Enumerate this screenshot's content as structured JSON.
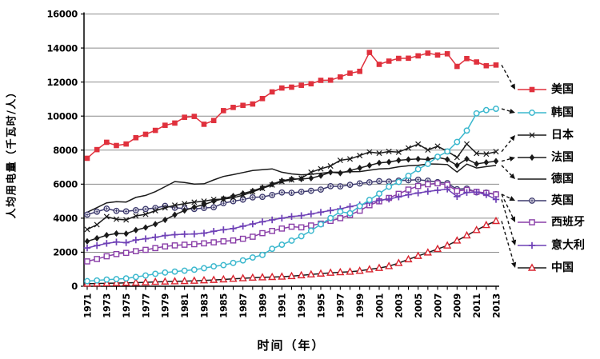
{
  "figure": {
    "background": "#ffffff"
  },
  "chart_data": {
    "type": "line",
    "title": "",
    "xlabel": "时间（年）",
    "ylabel": "人均用电量（千瓦时/人）",
    "x_start": 1971,
    "x_end": 2013,
    "ylim": [
      0,
      16000
    ],
    "y_tick_step": 2000,
    "grid": "horizontal-gray",
    "legend_position": "right-outside-with-dashed-arrows",
    "y_ticks": [
      0,
      2000,
      4000,
      6000,
      8000,
      10000,
      12000,
      14000,
      16000
    ],
    "x_ticks": [
      1971,
      1973,
      1975,
      1977,
      1979,
      1981,
      1983,
      1985,
      1987,
      1989,
      1991,
      1993,
      1995,
      1997,
      1999,
      2001,
      2003,
      2005,
      2007,
      2009,
      2011,
      2013
    ],
    "x": [
      1971,
      1972,
      1973,
      1974,
      1975,
      1976,
      1977,
      1978,
      1979,
      1980,
      1981,
      1982,
      1983,
      1984,
      1985,
      1986,
      1987,
      1988,
      1989,
      1990,
      1991,
      1992,
      1993,
      1994,
      1995,
      1996,
      1997,
      1998,
      1999,
      2000,
      2001,
      2002,
      2003,
      2004,
      2005,
      2006,
      2007,
      2008,
      2009,
      2010,
      2011,
      2012,
      2013
    ],
    "series": [
      {
        "name": "美国",
        "marker": "square-filled",
        "line_color": "#e0313d",
        "marker_color": "#e0313d",
        "values": [
          7520,
          8030,
          8460,
          8270,
          8360,
          8730,
          8930,
          9160,
          9460,
          9590,
          9930,
          9980,
          9520,
          9740,
          10320,
          10510,
          10630,
          10710,
          11030,
          11420,
          11650,
          11700,
          11810,
          11900,
          12100,
          12110,
          12300,
          12520,
          12630,
          13740,
          13040,
          13230,
          13390,
          13400,
          13540,
          13700,
          13590,
          13660,
          12920,
          13380,
          13180,
          12960,
          13000
        ]
      },
      {
        "name": "韩国",
        "marker": "circle-open",
        "line_color": "#3cb8ce",
        "marker_color": "#3cb8ce",
        "values": [
          300,
          340,
          390,
          420,
          460,
          545,
          630,
          730,
          805,
          860,
          915,
          970,
          1060,
          1170,
          1240,
          1370,
          1520,
          1690,
          1840,
          2200,
          2440,
          2680,
          2940,
          3260,
          3640,
          4010,
          4380,
          4290,
          4710,
          5070,
          5440,
          5850,
          6130,
          6490,
          6880,
          7190,
          7610,
          7920,
          8480,
          9150,
          10160,
          10350,
          10430
        ]
      },
      {
        "name": "日本",
        "marker": "x-cross",
        "line_color": "#1a1a1a",
        "marker_color": "#1a1a1a",
        "values": [
          3340,
          3620,
          4090,
          3940,
          3900,
          4130,
          4230,
          4440,
          4610,
          4760,
          4850,
          4940,
          5000,
          5100,
          5120,
          5200,
          5350,
          5550,
          5750,
          5950,
          6150,
          6250,
          6350,
          6700,
          6900,
          7070,
          7400,
          7480,
          7680,
          7890,
          7820,
          7920,
          7880,
          8120,
          8350,
          8010,
          8230,
          7930,
          7570,
          8360,
          7810,
          7770,
          7910
        ]
      },
      {
        "name": "法国",
        "marker": "diamond-filled",
        "line_color": "#1a1a1a",
        "marker_color": "#1a1a1a",
        "values": [
          2640,
          2820,
          3000,
          3100,
          3090,
          3300,
          3450,
          3650,
          3900,
          4200,
          4450,
          4650,
          4800,
          5000,
          5150,
          5300,
          5450,
          5600,
          5800,
          6000,
          6200,
          6300,
          6300,
          6350,
          6500,
          6700,
          6650,
          6800,
          6950,
          7100,
          7250,
          7300,
          7400,
          7450,
          7480,
          7450,
          7575,
          7450,
          7100,
          7480,
          7190,
          7280,
          7350
        ]
      },
      {
        "name": "德国",
        "marker": "none",
        "line_color": "#1a1a1a",
        "marker_color": "#1a1a1a",
        "values": [
          4350,
          4620,
          4900,
          4970,
          4950,
          5220,
          5340,
          5560,
          5850,
          6150,
          6100,
          6000,
          6020,
          6250,
          6450,
          6560,
          6680,
          6800,
          6850,
          6900,
          6700,
          6600,
          6550,
          6580,
          6640,
          6700,
          6700,
          6730,
          6740,
          6820,
          6900,
          6920,
          7020,
          7080,
          7110,
          7190,
          7180,
          7150,
          6710,
          7180,
          6950,
          7030,
          7100
        ]
      },
      {
        "name": "英国",
        "marker": "circle-plus",
        "line_color": "#3d3a6e",
        "marker_color": "#3d3a6e",
        "values": [
          4210,
          4380,
          4560,
          4430,
          4400,
          4470,
          4540,
          4600,
          4720,
          4610,
          4570,
          4540,
          4600,
          4640,
          4880,
          5000,
          5090,
          5220,
          5250,
          5360,
          5510,
          5490,
          5550,
          5610,
          5680,
          5880,
          5870,
          5960,
          6040,
          6110,
          6180,
          6150,
          6210,
          6230,
          6260,
          6200,
          6120,
          6060,
          5700,
          5740,
          5520,
          5500,
          5410
        ]
      },
      {
        "name": "西班牙",
        "marker": "square-open",
        "line_color": "#8a3fa8",
        "marker_color": "#8a3fa8",
        "values": [
          1460,
          1600,
          1760,
          1890,
          1960,
          2060,
          2140,
          2240,
          2340,
          2400,
          2440,
          2470,
          2520,
          2580,
          2640,
          2690,
          2790,
          2910,
          3120,
          3250,
          3390,
          3500,
          3460,
          3570,
          3680,
          3840,
          4000,
          4190,
          4440,
          4760,
          4990,
          5190,
          5430,
          5680,
          5890,
          5990,
          6050,
          5960,
          5600,
          5660,
          5550,
          5480,
          5400
        ]
      },
      {
        "name": "意大利",
        "marker": "plus",
        "line_color": "#6e40b6",
        "marker_color": "#6e40b6",
        "values": [
          2250,
          2390,
          2520,
          2600,
          2560,
          2720,
          2790,
          2880,
          2980,
          3030,
          3060,
          3070,
          3120,
          3230,
          3320,
          3390,
          3530,
          3660,
          3790,
          3900,
          4000,
          4100,
          4150,
          4250,
          4350,
          4450,
          4550,
          4680,
          4780,
          4900,
          5050,
          5120,
          5250,
          5380,
          5480,
          5570,
          5640,
          5710,
          5270,
          5510,
          5530,
          5380,
          5100
        ]
      },
      {
        "name": "中国",
        "marker": "triangle-open",
        "line_color": "#1a1a1a",
        "marker_color": "#d9232e",
        "values": [
          150,
          160,
          175,
          185,
          200,
          210,
          230,
          255,
          270,
          285,
          300,
          320,
          345,
          370,
          400,
          430,
          465,
          500,
          520,
          540,
          560,
          590,
          640,
          690,
          740,
          790,
          820,
          850,
          900,
          990,
          1070,
          1180,
          1360,
          1580,
          1780,
          1980,
          2190,
          2390,
          2680,
          2980,
          3300,
          3590,
          3830
        ]
      }
    ]
  }
}
